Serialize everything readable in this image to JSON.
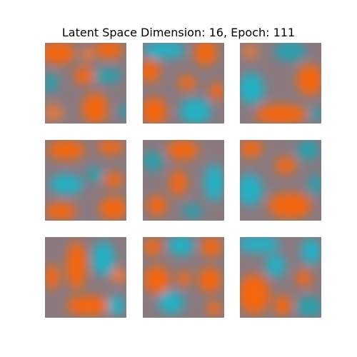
{
  "figure": {
    "title": "Latent Space Dimension: 16, Epoch: 111",
    "colors": {
      "orange": "#f5660f",
      "teal": "#20b0c4",
      "mauve": "#8a7a80",
      "background": "#ffffff"
    },
    "grid": {
      "rows": 3,
      "cols": 3
    }
  }
}
